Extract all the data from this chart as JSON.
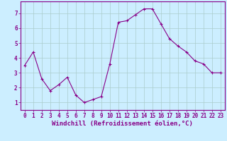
{
  "x": [
    0,
    1,
    2,
    3,
    4,
    5,
    6,
    7,
    8,
    9,
    10,
    11,
    12,
    13,
    14,
    15,
    16,
    17,
    18,
    19,
    20,
    21,
    22,
    23
  ],
  "y": [
    3.5,
    4.4,
    2.6,
    1.8,
    2.2,
    2.7,
    1.5,
    1.0,
    1.2,
    1.4,
    3.6,
    6.4,
    6.5,
    6.9,
    7.3,
    7.3,
    6.3,
    5.3,
    4.8,
    4.4,
    3.8,
    3.6,
    3.0,
    3.0
  ],
  "line_color": "#880088",
  "marker": "+",
  "marker_size": 3,
  "line_width": 0.8,
  "bg_color": "#cceeff",
  "grid_color": "#aacccc",
  "xlabel": "Windchill (Refroidissement éolien,°C)",
  "xlabel_fontsize": 6.5,
  "tick_fontsize": 5.5,
  "ylim": [
    0.5,
    7.8
  ],
  "xlim": [
    -0.5,
    23.5
  ],
  "yticks": [
    1,
    2,
    3,
    4,
    5,
    6,
    7
  ],
  "xticks": [
    0,
    1,
    2,
    3,
    4,
    5,
    6,
    7,
    8,
    9,
    10,
    11,
    12,
    13,
    14,
    15,
    16,
    17,
    18,
    19,
    20,
    21,
    22,
    23
  ]
}
